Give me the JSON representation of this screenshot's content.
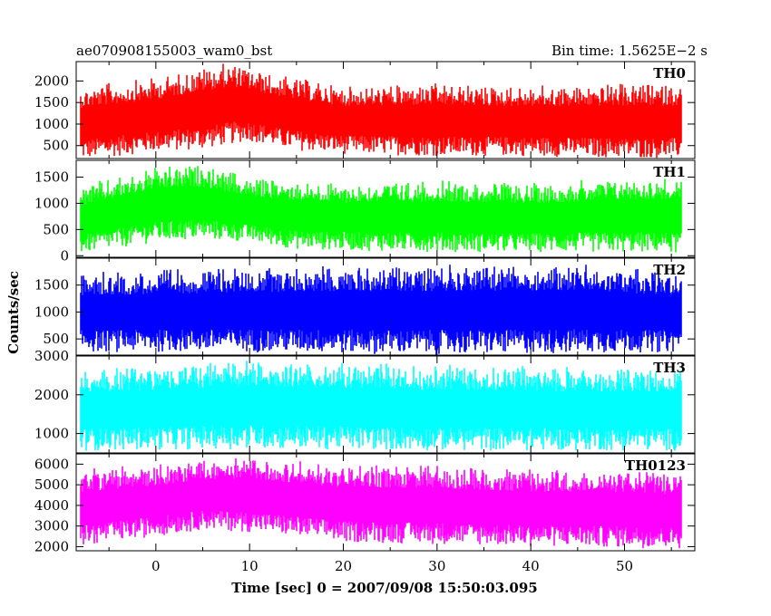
{
  "chart_data": {
    "type": "line",
    "title_left": "ae070908155003_wam0_bst",
    "title_right": "Bin time: 1.5625E−2 s",
    "xlabel": "Time [sec] 0 = 2007/09/08 15:50:03.095",
    "ylabel": "Counts/sec",
    "xlim": [
      -8.5,
      57.5
    ],
    "x_ticks": [
      0,
      10,
      20,
      30,
      40,
      50
    ],
    "x_tick_labels": [
      "0",
      "10",
      "20",
      "30",
      "40",
      "50"
    ],
    "data_x_range": [
      -8,
      56
    ],
    "bin_time_s": 0.015625,
    "panels": [
      {
        "label": "TH0",
        "color": "#ff0000",
        "ylim": [
          200,
          2450
        ],
        "y_ticks": [
          500,
          1000,
          1500,
          2000
        ],
        "y_tick_labels": [
          "500",
          "1000",
          "1500",
          "2000"
        ],
        "min_envelope": [
          [
            -8,
            150
          ],
          [
            0,
            350
          ],
          [
            5,
            400
          ],
          [
            10,
            600
          ],
          [
            14,
            400
          ],
          [
            20,
            300
          ],
          [
            30,
            250
          ],
          [
            40,
            250
          ],
          [
            50,
            200
          ],
          [
            56,
            200
          ]
        ],
        "max_envelope": [
          [
            -8,
            1900
          ],
          [
            0,
            2100
          ],
          [
            5,
            2350
          ],
          [
            8,
            2450
          ],
          [
            12,
            2200
          ],
          [
            20,
            1900
          ],
          [
            30,
            1950
          ],
          [
            40,
            1900
          ],
          [
            50,
            1950
          ],
          [
            56,
            1950
          ]
        ]
      },
      {
        "label": "TH1",
        "color": "#00ff00",
        "ylim": [
          -30,
          1820
        ],
        "y_ticks": [
          0,
          500,
          1000,
          1500
        ],
        "y_tick_labels": [
          "0",
          "500",
          "1000",
          "1500"
        ],
        "min_envelope": [
          [
            -8,
            30
          ],
          [
            0,
            250
          ],
          [
            5,
            300
          ],
          [
            10,
            250
          ],
          [
            15,
            120
          ],
          [
            25,
            80
          ],
          [
            35,
            60
          ],
          [
            45,
            60
          ],
          [
            56,
            50
          ]
        ],
        "max_envelope": [
          [
            -8,
            1350
          ],
          [
            0,
            1700
          ],
          [
            5,
            1750
          ],
          [
            10,
            1500
          ],
          [
            20,
            1400
          ],
          [
            30,
            1450
          ],
          [
            40,
            1400
          ],
          [
            50,
            1500
          ],
          [
            56,
            1500
          ]
        ]
      },
      {
        "label": "TH2",
        "color": "#0000ff",
        "ylim": [
          200,
          2000
        ],
        "y_ticks": [
          500,
          1000,
          1500
        ],
        "y_tick_labels": [
          "500",
          "1000",
          "1500"
        ],
        "min_envelope": [
          [
            -8,
            250
          ],
          [
            10,
            250
          ],
          [
            30,
            200
          ],
          [
            56,
            250
          ]
        ],
        "max_envelope": [
          [
            -8,
            1750
          ],
          [
            10,
            1850
          ],
          [
            30,
            1900
          ],
          [
            45,
            1900
          ],
          [
            56,
            1750
          ]
        ]
      },
      {
        "label": "TH3",
        "color": "#00ffff",
        "ylim": [
          500,
          3000
        ],
        "y_ticks": [
          1000,
          2000,
          3000
        ],
        "y_tick_labels": [
          "1000",
          "2000",
          "3000"
        ],
        "min_envelope": [
          [
            -8,
            550
          ],
          [
            10,
            600
          ],
          [
            30,
            550
          ],
          [
            56,
            550
          ]
        ],
        "max_envelope": [
          [
            -8,
            2700
          ],
          [
            10,
            2900
          ],
          [
            30,
            2800
          ],
          [
            56,
            2700
          ]
        ]
      },
      {
        "label": "TH0123",
        "color": "#ff00ff",
        "ylim": [
          1800,
          6500
        ],
        "y_ticks": [
          2000,
          3000,
          4000,
          5000,
          6000
        ],
        "y_tick_labels": [
          "2000",
          "3000",
          "4000",
          "5000",
          "6000"
        ],
        "min_envelope": [
          [
            -8,
            2000
          ],
          [
            0,
            2500
          ],
          [
            5,
            2800
          ],
          [
            10,
            2700
          ],
          [
            20,
            2200
          ],
          [
            30,
            2100
          ],
          [
            40,
            2000
          ],
          [
            56,
            1900
          ]
        ],
        "max_envelope": [
          [
            -8,
            5800
          ],
          [
            0,
            6000
          ],
          [
            5,
            6300
          ],
          [
            10,
            6400
          ],
          [
            20,
            6000
          ],
          [
            30,
            6000
          ],
          [
            40,
            5800
          ],
          [
            50,
            5800
          ],
          [
            56,
            5600
          ]
        ]
      }
    ]
  }
}
